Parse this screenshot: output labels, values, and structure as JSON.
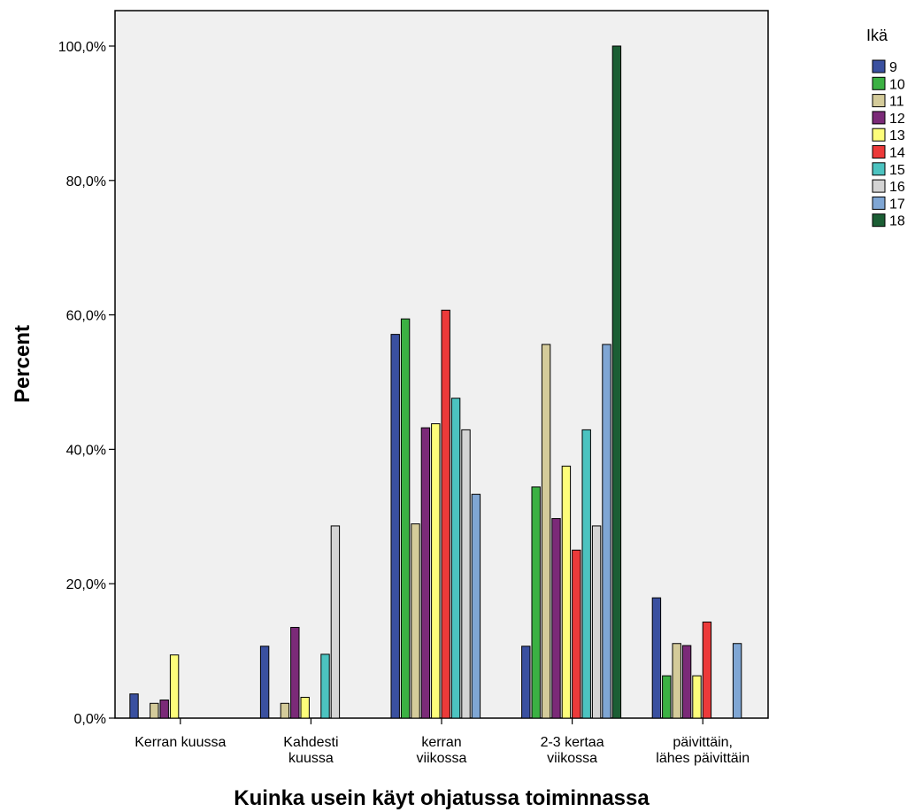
{
  "chart_data": {
    "type": "bar",
    "xlabel": "Kuinka usein käyt ohjatussa toiminnassa",
    "ylabel": "Percent",
    "ylim": [
      0,
      105
    ],
    "yticks": [
      0,
      20,
      40,
      60,
      80,
      100
    ],
    "ytick_labels": [
      "0,0%",
      "20,0%",
      "40,0%",
      "60,0%",
      "80,0%",
      "100,0%"
    ],
    "grid": false,
    "legend_title": "Ikä",
    "legend_position": "right",
    "categories": [
      [
        "Kerran kuussa"
      ],
      [
        "Kahdesti",
        "kuussa"
      ],
      [
        "kerran",
        "viikossa"
      ],
      [
        "2-3 kertaa",
        "viikossa"
      ],
      [
        "päivittäin,",
        "lähes päivittäin"
      ]
    ],
    "series": [
      {
        "name": "9",
        "color": "#3a50a0",
        "values": [
          3.6,
          10.7,
          57.1,
          10.7,
          17.9
        ]
      },
      {
        "name": "10",
        "color": "#3bb143",
        "values": [
          0,
          0,
          59.4,
          34.4,
          6.3
        ]
      },
      {
        "name": "11",
        "color": "#d4cb9a",
        "values": [
          2.2,
          2.2,
          28.9,
          55.6,
          11.1
        ]
      },
      {
        "name": "12",
        "color": "#7b2a78",
        "values": [
          2.7,
          13.5,
          43.2,
          29.7,
          10.8
        ]
      },
      {
        "name": "13",
        "color": "#fdfd7a",
        "values": [
          9.4,
          3.1,
          43.8,
          37.5,
          6.3
        ]
      },
      {
        "name": "14",
        "color": "#ec3a3a",
        "values": [
          0,
          0,
          60.7,
          25.0,
          14.3
        ]
      },
      {
        "name": "15",
        "color": "#4cc3c0",
        "values": [
          0,
          9.5,
          47.6,
          42.9,
          0
        ]
      },
      {
        "name": "16",
        "color": "#d4d4d4",
        "values": [
          0,
          28.6,
          42.9,
          28.6,
          0
        ]
      },
      {
        "name": "17",
        "color": "#7fa6d4",
        "values": [
          0,
          0,
          33.3,
          55.6,
          11.1
        ]
      },
      {
        "name": "18",
        "color": "#1b5e34",
        "values": [
          0,
          0,
          0,
          100.0,
          0
        ]
      }
    ]
  }
}
